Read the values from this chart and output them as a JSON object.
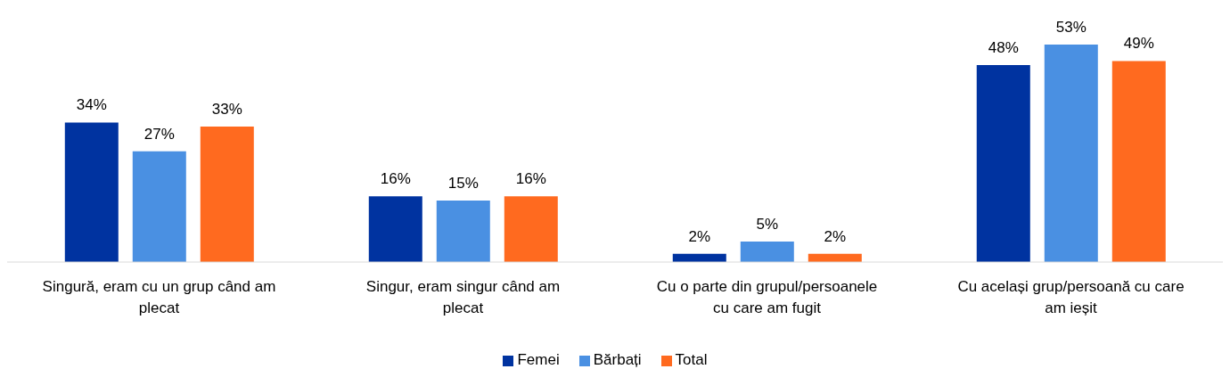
{
  "chart_data": {
    "type": "bar",
    "categories": [
      "Singură, eram cu un grup când am plecat",
      "Singur, eram singur când am plecat",
      "Cu o parte din grupul/persoanele cu care am fugit",
      "Cu același grup/persoană cu care am ieșit"
    ],
    "series": [
      {
        "name": "Femei",
        "color": "#0033a0",
        "values": [
          34,
          16,
          2,
          48
        ],
        "value_labels": [
          "34%",
          "16%",
          "2%",
          "48%"
        ]
      },
      {
        "name": "Bărbați",
        "color": "#4a90e2",
        "values": [
          27,
          15,
          5,
          53
        ],
        "value_labels": [
          "27%",
          "15%",
          "5%",
          "53%"
        ]
      },
      {
        "name": "Total",
        "color": "#ff6a1f",
        "values": [
          33,
          16,
          2,
          49
        ],
        "value_labels": [
          "33%",
          "16%",
          "2%",
          "49%"
        ]
      }
    ],
    "legend": "bottom"
  }
}
